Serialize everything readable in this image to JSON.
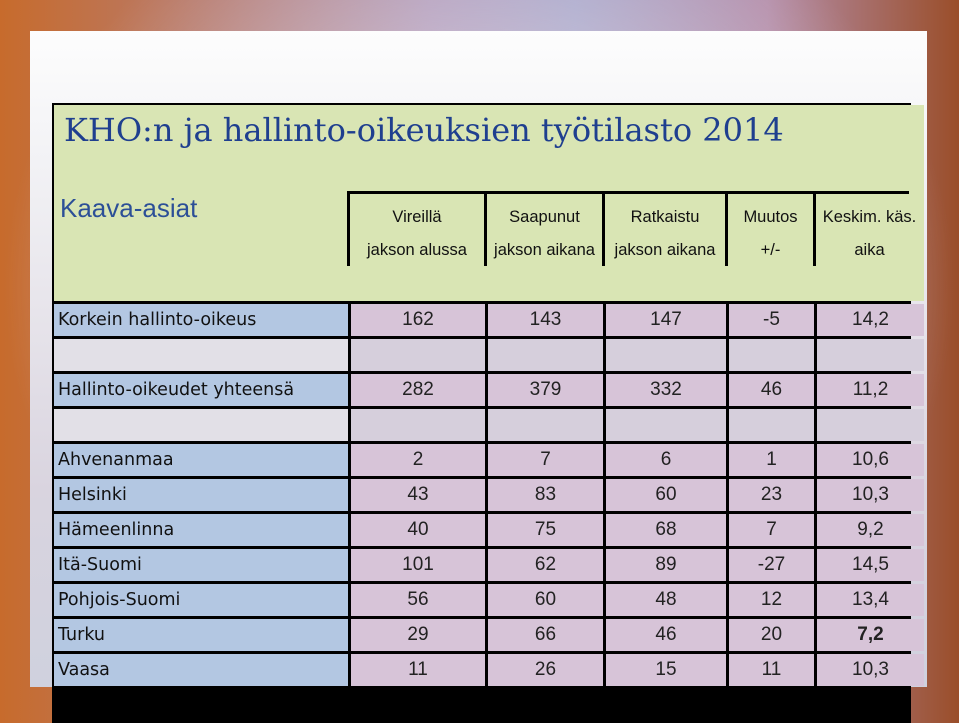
{
  "title": "KHO:n ja hallinto-oikeuksien työtilasto 2014",
  "section": "Kaava-asiat",
  "headers": [
    {
      "line1": "Vireillä",
      "line2": "jakson alussa"
    },
    {
      "line1": "Saapunut",
      "line2": "jakson aikana"
    },
    {
      "line1": "Ratkaistu",
      "line2": "jakson aikana"
    },
    {
      "line1": "Muutos",
      "line2": "+/-"
    },
    {
      "line1": "Keskim. käs.",
      "line2": "aika"
    }
  ],
  "rows": [
    {
      "label": "Korkein hallinto-oikeus",
      "values": [
        "162",
        "143",
        "147",
        "-5",
        "14,2"
      ]
    },
    {
      "label": "Hallinto-oikeudet yhteensä",
      "values": [
        "282",
        "379",
        "332",
        "46",
        "11,2"
      ]
    },
    {
      "label": "Ahvenanmaa",
      "values": [
        "2",
        "7",
        "6",
        "1",
        "10,6"
      ]
    },
    {
      "label": "Helsinki",
      "values": [
        "43",
        "83",
        "60",
        "23",
        "10,3"
      ]
    },
    {
      "label": "Hämeenlinna",
      "values": [
        "40",
        "75",
        "68",
        "7",
        "9,2"
      ]
    },
    {
      "label": "Itä-Suomi",
      "values": [
        "101",
        "62",
        "89",
        "-27",
        "14,5"
      ]
    },
    {
      "label": "Pohjois-Suomi",
      "values": [
        "56",
        "60",
        "48",
        "12",
        "13,4"
      ]
    },
    {
      "label": "Turku",
      "values": [
        "29",
        "66",
        "46",
        "20",
        "7,2"
      ]
    },
    {
      "label": "Vaasa",
      "values": [
        "11",
        "26",
        "15",
        "11",
        "10,3"
      ]
    }
  ],
  "colors": {
    "title": "#1f3f8f",
    "header_fill": "#d9e5b4",
    "label_fill": "#b3c7e2",
    "cell_fill": "#d7c4d8"
  }
}
